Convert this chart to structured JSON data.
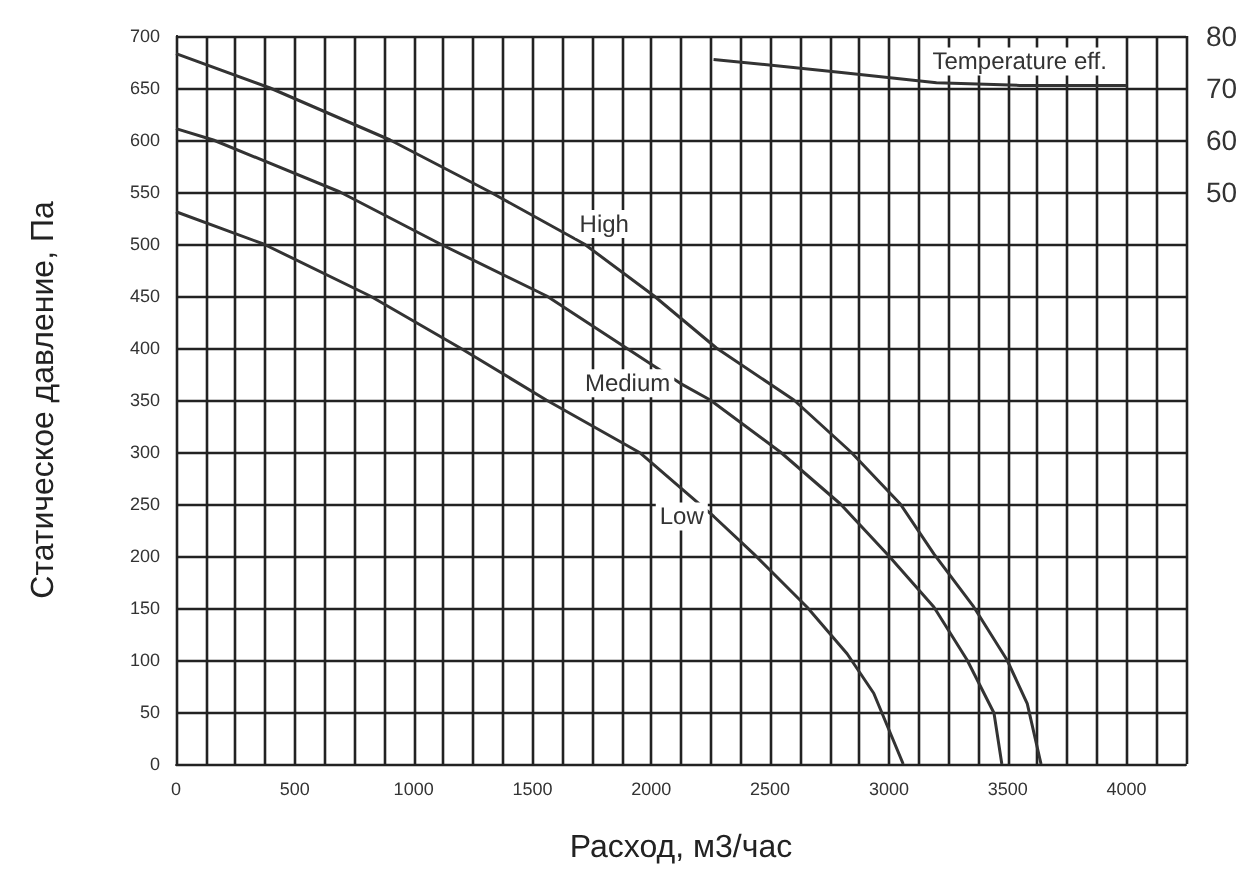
{
  "chart_data": {
    "type": "line",
    "xlabel": "Расход, м3/час",
    "ylabel": "Статическое давление, Па",
    "xlim": [
      0,
      4250
    ],
    "xticks": [
      0,
      500,
      1000,
      1500,
      2000,
      2500,
      3000,
      3500,
      4000
    ],
    "ylim": [
      0,
      700
    ],
    "yticks": [
      0,
      50,
      100,
      150,
      200,
      250,
      300,
      350,
      400,
      450,
      500,
      550,
      600,
      650,
      700
    ],
    "y2lim": [
      -60,
      80
    ],
    "y2ticks": [
      50,
      60,
      70,
      80
    ],
    "grid": true,
    "legend": false,
    "marker": "none",
    "line_style": "solid",
    "series": [
      {
        "name": "High",
        "color": "#333333",
        "x": [
          0,
          396,
          901,
          1322,
          1718,
          2012,
          2274,
          2600,
          2840,
          3048,
          3189,
          3357,
          3497,
          3582,
          3640
        ],
        "values": [
          683,
          650,
          600,
          550,
          500,
          450,
          400,
          350,
          300,
          250,
          202,
          151,
          100,
          58,
          0
        ]
      },
      {
        "name": "Medium",
        "color": "#333333",
        "x": [
          0,
          157,
          690,
          1112,
          1560,
          1895,
          2122,
          2248,
          2543,
          2796,
          3000,
          3189,
          3329,
          3442,
          3475
        ],
        "values": [
          611,
          600,
          550,
          500,
          450,
          400,
          366,
          350,
          300,
          250,
          200,
          151,
          100,
          49,
          0
        ]
      },
      {
        "name": "Low",
        "color": "#333333",
        "x": [
          0,
          368,
          817,
          1196,
          1558,
          1954,
          2263,
          2431,
          2655,
          2824,
          2936,
          3060
        ],
        "values": [
          531,
          500,
          450,
          400,
          350,
          299,
          238,
          202,
          151,
          106,
          68,
          0
        ]
      },
      {
        "name": "Temperature eff.",
        "color": "#333333",
        "axis": "y2",
        "x": [
          2262,
          2800,
          3200,
          3550,
          4000
        ],
        "values": [
          75.5,
          73,
          71,
          70.5,
          70.5
        ]
      }
    ]
  }
}
